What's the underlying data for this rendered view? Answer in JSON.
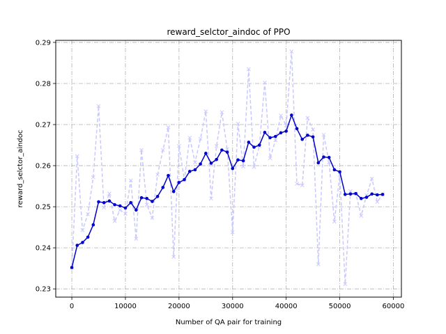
{
  "chart_data": {
    "type": "line",
    "title": "reward_selctor_aindoc of PPO",
    "xlabel": "Number of QA pair for training",
    "ylabel": "reward_selctor_aindoc",
    "xlim": [
      -3000,
      61500
    ],
    "ylim": [
      0.228,
      0.2905
    ],
    "xticks": [
      0,
      10000,
      20000,
      30000,
      40000,
      50000,
      60000
    ],
    "yticks": [
      0.23,
      0.24,
      0.25,
      0.26,
      0.27,
      0.28,
      0.29
    ],
    "grid": true,
    "series": [
      {
        "style": "raw",
        "color": "#c8c8ff",
        "marker": "x",
        "line": "dashed",
        "x": [
          0,
          1000,
          2000,
          3000,
          4000,
          5000,
          6000,
          7000,
          8000,
          9000,
          10000,
          11000,
          12000,
          13000,
          14000,
          15000,
          16000,
          17000,
          18000,
          19000,
          20000,
          21000,
          22000,
          23000,
          24000,
          25000,
          26000,
          27000,
          28000,
          29000,
          30000,
          31000,
          32000,
          33000,
          34000,
          35000,
          36000,
          37000,
          38000,
          39000,
          40000,
          41000,
          42000,
          43000,
          44000,
          45000,
          46000,
          47000,
          48000,
          49000,
          50000,
          51000,
          52000,
          53000,
          54000,
          55000,
          56000,
          57000,
          58000
        ],
        "values": [
          0.2352,
          0.2623,
          0.2443,
          0.2482,
          0.2572,
          0.2745,
          0.2498,
          0.2532,
          0.2465,
          0.2492,
          0.2483,
          0.2564,
          0.2422,
          0.2638,
          0.2505,
          0.2473,
          0.2578,
          0.2638,
          0.2693,
          0.2378,
          0.2648,
          0.2565,
          0.2668,
          0.2608,
          0.2665,
          0.2732,
          0.252,
          0.2648,
          0.273,
          0.264,
          0.2438,
          0.2702,
          0.2598,
          0.2835,
          0.2597,
          0.2648,
          0.2802,
          0.2618,
          0.2662,
          0.2722,
          0.2698,
          0.2878,
          0.2556,
          0.2552,
          0.2716,
          0.2688,
          0.236,
          0.2675,
          0.2608,
          0.2464,
          0.2578,
          0.2312,
          0.2538,
          0.2532,
          0.2478,
          0.2528,
          0.2568,
          0.2512,
          0.253
        ]
      },
      {
        "style": "smoothed",
        "color": "#0000cc",
        "marker": "dot",
        "line": "solid",
        "x": [
          0,
          1000,
          2000,
          3000,
          4000,
          5000,
          6000,
          7000,
          8000,
          9000,
          10000,
          11000,
          12000,
          13000,
          14000,
          15000,
          16000,
          17000,
          18000,
          19000,
          20000,
          21000,
          22000,
          23000,
          24000,
          25000,
          26000,
          27000,
          28000,
          29000,
          30000,
          31000,
          32000,
          33000,
          34000,
          35000,
          36000,
          37000,
          38000,
          39000,
          40000,
          41000,
          42000,
          43000,
          44000,
          45000,
          46000,
          47000,
          48000,
          49000,
          50000,
          51000,
          52000,
          53000,
          54000,
          55000,
          56000,
          57000,
          58000
        ],
        "values": [
          0.2352,
          0.2406,
          0.2413,
          0.2426,
          0.2456,
          0.2512,
          0.251,
          0.2514,
          0.2505,
          0.2502,
          0.2497,
          0.251,
          0.2492,
          0.2522,
          0.252,
          0.2513,
          0.2525,
          0.2547,
          0.2576,
          0.2537,
          0.2559,
          0.2566,
          0.2586,
          0.259,
          0.2604,
          0.263,
          0.2606,
          0.2615,
          0.2638,
          0.2633,
          0.2593,
          0.2614,
          0.2612,
          0.2657,
          0.2645,
          0.265,
          0.2681,
          0.2668,
          0.2671,
          0.268,
          0.2684,
          0.2723,
          0.269,
          0.2664,
          0.2674,
          0.267,
          0.2607,
          0.2621,
          0.262,
          0.259,
          0.2585,
          0.253,
          0.2531,
          0.2532,
          0.252,
          0.2523,
          0.2531,
          0.2529,
          0.253
        ]
      }
    ]
  }
}
